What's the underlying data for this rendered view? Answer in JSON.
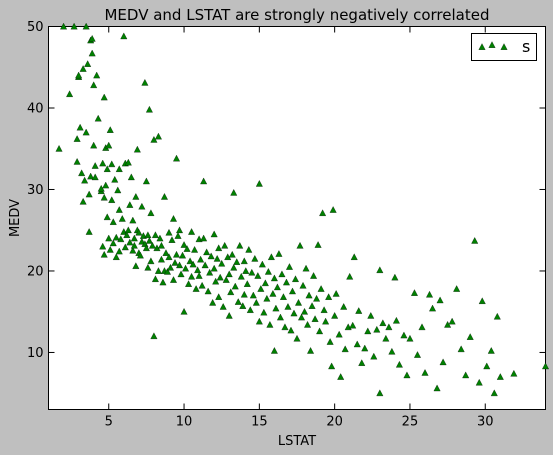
{
  "chart_data": {
    "type": "scatter",
    "title": "MEDV and LSTAT are strongly negatively correlated",
    "xlabel": "LSTAT",
    "ylabel": "MEDV",
    "xlim": [
      1,
      34
    ],
    "ylim": [
      3,
      50
    ],
    "xticks": [
      5,
      10,
      15,
      20,
      25,
      30
    ],
    "yticks": [
      10,
      20,
      30,
      40,
      50
    ],
    "grid": false,
    "legend_position": "top-right",
    "marker": "triangle",
    "series": [
      {
        "name": "s",
        "color": "#008000",
        "points": [
          [
            1.7,
            35.0
          ],
          [
            2.0,
            50.0
          ],
          [
            2.4,
            41.7
          ],
          [
            2.7,
            50.0
          ],
          [
            2.9,
            36.2
          ],
          [
            2.9,
            33.4
          ],
          [
            3.0,
            43.8
          ],
          [
            3.0,
            44.0
          ],
          [
            3.1,
            37.6
          ],
          [
            3.2,
            32.0
          ],
          [
            3.3,
            28.5
          ],
          [
            3.3,
            44.8
          ],
          [
            3.4,
            31.1
          ],
          [
            3.5,
            37.0
          ],
          [
            3.5,
            50.0
          ],
          [
            3.6,
            45.4
          ],
          [
            3.7,
            29.4
          ],
          [
            3.7,
            24.8
          ],
          [
            3.8,
            48.3
          ],
          [
            3.8,
            31.6
          ],
          [
            3.9,
            48.5
          ],
          [
            3.9,
            46.7
          ],
          [
            4.0,
            42.8
          ],
          [
            4.0,
            35.4
          ],
          [
            4.1,
            31.5
          ],
          [
            4.1,
            32.9
          ],
          [
            4.2,
            44.0
          ],
          [
            4.3,
            38.7
          ],
          [
            4.5,
            29.8
          ],
          [
            4.5,
            30.1
          ],
          [
            4.6,
            23.0
          ],
          [
            4.6,
            33.2
          ],
          [
            4.7,
            22.0
          ],
          [
            4.7,
            29.0
          ],
          [
            4.7,
            41.3
          ],
          [
            4.8,
            30.5
          ],
          [
            4.8,
            35.1
          ],
          [
            4.9,
            26.6
          ],
          [
            4.9,
            32.5
          ],
          [
            5.0,
            35.4
          ],
          [
            5.0,
            24.0
          ],
          [
            5.1,
            22.6
          ],
          [
            5.1,
            37.3
          ],
          [
            5.2,
            28.7
          ],
          [
            5.2,
            33.1
          ],
          [
            5.3,
            26.0
          ],
          [
            5.3,
            23.4
          ],
          [
            5.4,
            31.2
          ],
          [
            5.5,
            21.7
          ],
          [
            5.5,
            24.1
          ],
          [
            5.6,
            29.9
          ],
          [
            5.7,
            22.4
          ],
          [
            5.7,
            27.5
          ],
          [
            5.7,
            32.5
          ],
          [
            5.8,
            23.9
          ],
          [
            5.9,
            26.4
          ],
          [
            6.0,
            48.8
          ],
          [
            6.0,
            24.8
          ],
          [
            6.1,
            22.9
          ],
          [
            6.1,
            33.2
          ],
          [
            6.2,
            24.4
          ],
          [
            6.3,
            25.0
          ],
          [
            6.3,
            33.3
          ],
          [
            6.4,
            23.5
          ],
          [
            6.4,
            28.1
          ],
          [
            6.5,
            31.5
          ],
          [
            6.6,
            22.5
          ],
          [
            6.6,
            26.2
          ],
          [
            6.7,
            24.0
          ],
          [
            6.7,
            23.1
          ],
          [
            6.8,
            20.6
          ],
          [
            6.8,
            29.1
          ],
          [
            6.9,
            25.0
          ],
          [
            6.9,
            34.9
          ],
          [
            7.0,
            22.2
          ],
          [
            7.0,
            24.7
          ],
          [
            7.1,
            21.9
          ],
          [
            7.2,
            23.6
          ],
          [
            7.2,
            27.9
          ],
          [
            7.3,
            24.3
          ],
          [
            7.4,
            23.3
          ],
          [
            7.4,
            43.1
          ],
          [
            7.5,
            22.8
          ],
          [
            7.5,
            31.0
          ],
          [
            7.6,
            20.4
          ],
          [
            7.6,
            24.4
          ],
          [
            7.7,
            39.8
          ],
          [
            7.7,
            23.7
          ],
          [
            7.8,
            21.2
          ],
          [
            7.8,
            27.1
          ],
          [
            7.9,
            23.1
          ],
          [
            8.0,
            12.0
          ],
          [
            8.0,
            36.1
          ],
          [
            8.1,
            24.4
          ],
          [
            8.1,
            19.0
          ],
          [
            8.2,
            22.8
          ],
          [
            8.3,
            20.0
          ],
          [
            8.3,
            36.5
          ],
          [
            8.4,
            24.0
          ],
          [
            8.5,
            23.1
          ],
          [
            8.5,
            21.4
          ],
          [
            8.6,
            18.6
          ],
          [
            8.7,
            20.0
          ],
          [
            8.7,
            29.1
          ],
          [
            8.8,
            22.2
          ],
          [
            8.9,
            19.9
          ],
          [
            9.0,
            24.7
          ],
          [
            9.0,
            21.7
          ],
          [
            9.1,
            20.4
          ],
          [
            9.2,
            23.8
          ],
          [
            9.3,
            18.9
          ],
          [
            9.3,
            26.4
          ],
          [
            9.4,
            21.0
          ],
          [
            9.5,
            22.0
          ],
          [
            9.5,
            33.8
          ],
          [
            9.6,
            24.3
          ],
          [
            9.7,
            20.7
          ],
          [
            9.7,
            25.0
          ],
          [
            9.8,
            19.6
          ],
          [
            9.9,
            21.9
          ],
          [
            10.0,
            23.2
          ],
          [
            10.0,
            15.0
          ],
          [
            10.1,
            20.3
          ],
          [
            10.2,
            22.7
          ],
          [
            10.3,
            18.4
          ],
          [
            10.4,
            21.2
          ],
          [
            10.5,
            24.8
          ],
          [
            10.5,
            19.3
          ],
          [
            10.6,
            20.8
          ],
          [
            10.7,
            22.6
          ],
          [
            10.8,
            17.8
          ],
          [
            10.9,
            20.1
          ],
          [
            11.0,
            23.9
          ],
          [
            11.0,
            19.4
          ],
          [
            11.1,
            21.4
          ],
          [
            11.2,
            18.2
          ],
          [
            11.3,
            24.0
          ],
          [
            11.3,
            31.0
          ],
          [
            11.4,
            20.7
          ],
          [
            11.5,
            22.3
          ],
          [
            11.6,
            17.5
          ],
          [
            11.7,
            19.8
          ],
          [
            11.8,
            21.8
          ],
          [
            11.9,
            16.1
          ],
          [
            12.0,
            20.3
          ],
          [
            12.0,
            24.5
          ],
          [
            12.1,
            18.7
          ],
          [
            12.2,
            21.5
          ],
          [
            12.3,
            22.8
          ],
          [
            12.3,
            16.8
          ],
          [
            12.4,
            19.2
          ],
          [
            12.5,
            20.9
          ],
          [
            12.6,
            15.6
          ],
          [
            12.7,
            23.1
          ],
          [
            12.8,
            18.9
          ],
          [
            12.9,
            21.7
          ],
          [
            13.0,
            19.6
          ],
          [
            13.0,
            14.5
          ],
          [
            13.1,
            17.4
          ],
          [
            13.2,
            22.0
          ],
          [
            13.3,
            20.4
          ],
          [
            13.3,
            29.6
          ],
          [
            13.4,
            18.1
          ],
          [
            13.5,
            21.1
          ],
          [
            13.6,
            16.2
          ],
          [
            13.7,
            23.1
          ],
          [
            13.8,
            19.3
          ],
          [
            13.9,
            15.7
          ],
          [
            14.0,
            21.2
          ],
          [
            14.0,
            17.1
          ],
          [
            14.1,
            20.0
          ],
          [
            14.2,
            18.4
          ],
          [
            14.3,
            22.6
          ],
          [
            14.4,
            15.2
          ],
          [
            14.5,
            19.8
          ],
          [
            14.6,
            17.0
          ],
          [
            14.7,
            21.5
          ],
          [
            14.8,
            16.1
          ],
          [
            14.9,
            19.4
          ],
          [
            15.0,
            30.7
          ],
          [
            15.0,
            13.8
          ],
          [
            15.1,
            17.8
          ],
          [
            15.2,
            20.8
          ],
          [
            15.3,
            14.9
          ],
          [
            15.4,
            18.5
          ],
          [
            15.5,
            16.6
          ],
          [
            15.6,
            19.9
          ],
          [
            15.7,
            13.4
          ],
          [
            15.8,
            21.7
          ],
          [
            15.9,
            17.2
          ],
          [
            16.0,
            10.2
          ],
          [
            16.0,
            19.1
          ],
          [
            16.1,
            15.4
          ],
          [
            16.2,
            18.0
          ],
          [
            16.3,
            22.1
          ],
          [
            16.4,
            14.3
          ],
          [
            16.5,
            19.6
          ],
          [
            16.6,
            16.8
          ],
          [
            16.7,
            13.1
          ],
          [
            16.8,
            18.6
          ],
          [
            16.9,
            15.6
          ],
          [
            17.0,
            20.5
          ],
          [
            17.1,
            12.7
          ],
          [
            17.2,
            17.5
          ],
          [
            17.3,
            14.8
          ],
          [
            17.4,
            19.0
          ],
          [
            17.5,
            11.7
          ],
          [
            17.6,
            16.1
          ],
          [
            17.7,
            23.1
          ],
          [
            17.8,
            14.3
          ],
          [
            17.9,
            18.2
          ],
          [
            18.0,
            15.0
          ],
          [
            18.1,
            20.3
          ],
          [
            18.2,
            13.4
          ],
          [
            18.3,
            17.0
          ],
          [
            18.4,
            10.2
          ],
          [
            18.5,
            15.7
          ],
          [
            18.6,
            19.4
          ],
          [
            18.7,
            14.1
          ],
          [
            18.8,
            16.6
          ],
          [
            18.9,
            23.2
          ],
          [
            19.0,
            12.6
          ],
          [
            19.1,
            17.8
          ],
          [
            19.2,
            27.1
          ],
          [
            19.3,
            15.2
          ],
          [
            19.4,
            13.8
          ],
          [
            19.6,
            16.8
          ],
          [
            19.7,
            11.3
          ],
          [
            19.8,
            8.3
          ],
          [
            19.9,
            27.5
          ],
          [
            20.0,
            14.5
          ],
          [
            20.1,
            17.2
          ],
          [
            20.3,
            12.2
          ],
          [
            20.4,
            7.0
          ],
          [
            20.6,
            15.6
          ],
          [
            20.7,
            10.4
          ],
          [
            20.9,
            13.1
          ],
          [
            21.0,
            19.3
          ],
          [
            21.2,
            13.3
          ],
          [
            21.3,
            21.7
          ],
          [
            21.5,
            11.0
          ],
          [
            21.6,
            15.1
          ],
          [
            21.8,
            8.7
          ],
          [
            22.0,
            10.5
          ],
          [
            22.2,
            12.6
          ],
          [
            22.4,
            14.5
          ],
          [
            22.6,
            9.5
          ],
          [
            22.8,
            12.8
          ],
          [
            23.0,
            20.1
          ],
          [
            23.0,
            5.0
          ],
          [
            23.2,
            13.6
          ],
          [
            23.4,
            11.7
          ],
          [
            23.6,
            13.1
          ],
          [
            23.8,
            10.1
          ],
          [
            24.0,
            19.2
          ],
          [
            24.1,
            13.9
          ],
          [
            24.3,
            8.5
          ],
          [
            24.6,
            12.1
          ],
          [
            24.8,
            7.2
          ],
          [
            25.0,
            11.7
          ],
          [
            25.3,
            17.3
          ],
          [
            25.5,
            9.7
          ],
          [
            25.8,
            13.1
          ],
          [
            26.0,
            7.5
          ],
          [
            26.3,
            17.1
          ],
          [
            26.5,
            15.4
          ],
          [
            26.8,
            5.6
          ],
          [
            27.0,
            16.4
          ],
          [
            27.2,
            8.8
          ],
          [
            27.5,
            13.4
          ],
          [
            27.8,
            13.8
          ],
          [
            28.1,
            17.8
          ],
          [
            28.4,
            10.4
          ],
          [
            28.7,
            7.2
          ],
          [
            29.0,
            11.9
          ],
          [
            29.3,
            23.7
          ],
          [
            29.6,
            6.3
          ],
          [
            29.8,
            16.3
          ],
          [
            30.1,
            8.3
          ],
          [
            30.4,
            10.2
          ],
          [
            30.6,
            5.0
          ],
          [
            30.8,
            14.4
          ],
          [
            31.0,
            7.0
          ],
          [
            31.9,
            7.4
          ],
          [
            34.0,
            8.3
          ]
        ]
      }
    ]
  }
}
